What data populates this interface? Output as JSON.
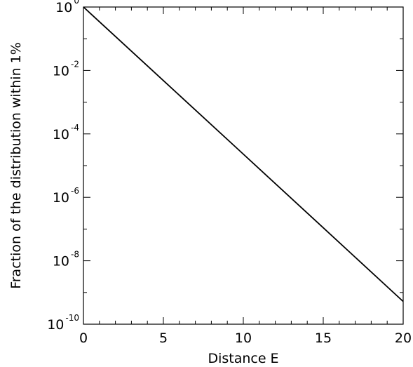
{
  "chart_data": {
    "type": "line",
    "title": "",
    "xlabel": "Distance E",
    "ylabel": "Fraction of the distribution within 1%",
    "x_scale": "linear",
    "y_scale": "log",
    "xlim": [
      0,
      20
    ],
    "ylim": [
      1e-10,
      1
    ],
    "grid": false,
    "x_ticks": [
      {
        "value": 0,
        "label": "0"
      },
      {
        "value": 5,
        "label": "5"
      },
      {
        "value": 10,
        "label": "10"
      },
      {
        "value": 15,
        "label": "15"
      },
      {
        "value": 20,
        "label": "20"
      }
    ],
    "y_ticks": [
      {
        "value": 1,
        "base": "10",
        "exp": "0"
      },
      {
        "value": 0.01,
        "base": "10",
        "exp": "-2"
      },
      {
        "value": 0.0001,
        "base": "10",
        "exp": "-4"
      },
      {
        "value": 1e-06,
        "base": "10",
        "exp": "-6"
      },
      {
        "value": 1e-08,
        "base": "10",
        "exp": "-8"
      },
      {
        "value": 1e-10,
        "base": "10",
        "exp": "-10"
      }
    ],
    "series": [
      {
        "color": "#000000",
        "x": [
          0,
          5,
          10,
          15,
          20
        ],
        "y": [
          1,
          0.0048,
          2.3e-05,
          1.1e-07,
          5.2e-10
        ]
      }
    ]
  }
}
